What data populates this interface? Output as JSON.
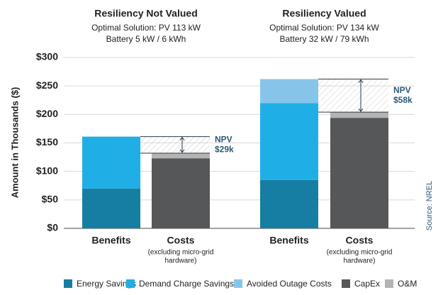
{
  "chart_data": {
    "type": "bar",
    "stacked": true,
    "y_label": "Amount in Thousands ($)",
    "source": "Source: NREL",
    "groups": [
      {
        "title": "Resiliency Not Valued",
        "subtitle": [
          "Optimal Solution: PV 113 kW",
          "Battery 5 kW / 6 kWh"
        ],
        "npv": {
          "label": "NPV",
          "value": 29,
          "value_label": "$29k"
        }
      },
      {
        "title": "Resiliency Valued",
        "subtitle": [
          "Optimal Solution: PV 134 kW",
          "Battery 32 kW / 79 kWh"
        ],
        "npv": {
          "label": "NPV",
          "value": 58,
          "value_label": "$58k"
        }
      }
    ],
    "categories": [
      "Benefits",
      "Costs",
      "Benefits",
      "Costs"
    ],
    "category_notes": [
      null,
      [
        "(excluding micro-grid",
        "hardware)"
      ],
      null,
      [
        "(excluding micro-grid",
        "hardware)"
      ]
    ],
    "series": [
      {
        "name": "Energy Savings",
        "color": "#177ea3",
        "values": [
          70,
          null,
          85,
          null
        ]
      },
      {
        "name": "Demand Charge Savings",
        "color": "#1fafe6",
        "values": [
          91,
          null,
          135,
          null
        ]
      },
      {
        "name": "Avoided Outage Costs",
        "color": "#87c4ea",
        "values": [
          null,
          null,
          42,
          null
        ]
      },
      {
        "name": "CapEx",
        "color": "#555759",
        "values": [
          null,
          123,
          null,
          194
        ]
      },
      {
        "name": "O&M",
        "color": "#b4b4b4",
        "values": [
          null,
          9,
          null,
          10
        ]
      }
    ],
    "ylim": [
      0,
      300
    ],
    "yticks": [
      {
        "value": 0,
        "label": "$0"
      },
      {
        "value": 50,
        "label": "$50"
      },
      {
        "value": 100,
        "label": "$100"
      },
      {
        "value": 150,
        "label": "$150"
      },
      {
        "value": 200,
        "label": "$200"
      },
      {
        "value": 250,
        "label": "$250"
      },
      {
        "value": 300,
        "label": "$300"
      }
    ],
    "grid": true
  }
}
